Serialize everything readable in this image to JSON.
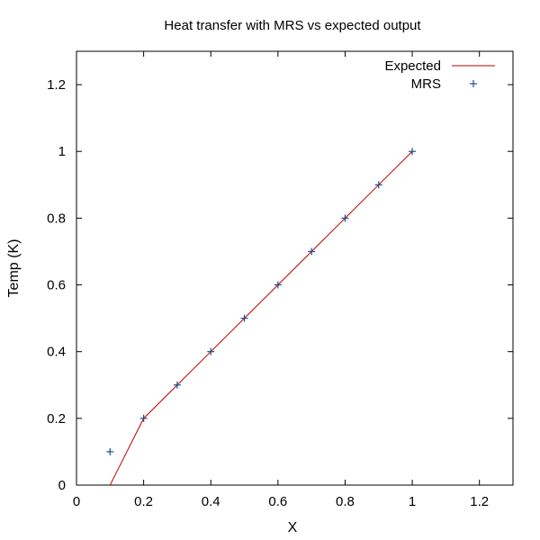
{
  "chart_data": {
    "type": "line",
    "title": "Heat transfer with MRS vs expected output",
    "xlabel": "X",
    "ylabel": "Temp (K)",
    "xlim": [
      0,
      1.3
    ],
    "ylim": [
      0,
      1.3
    ],
    "xticks": [
      0,
      0.2,
      0.4,
      0.6,
      0.8,
      1,
      1.2
    ],
    "yticks": [
      0,
      0.2,
      0.4,
      0.6,
      0.8,
      1,
      1.2
    ],
    "xtick_labels": [
      "0",
      "0.2",
      "0.4",
      "0.6",
      "0.8",
      "1",
      "1.2"
    ],
    "ytick_labels": [
      "0",
      "0.2",
      "0.4",
      "0.6",
      "0.8",
      "1",
      "1.2"
    ],
    "grid": false,
    "legend_position": "top-right",
    "series": [
      {
        "name": "Expected",
        "style": "line",
        "color": "#c00000",
        "x": [
          0.1,
          0.2,
          0.3,
          0.4,
          0.5,
          0.6,
          0.7,
          0.8,
          0.9,
          1.0
        ],
        "y": [
          0.0,
          0.2,
          0.3,
          0.4,
          0.5,
          0.6,
          0.7,
          0.8,
          0.9,
          1.0
        ]
      },
      {
        "name": "MRS",
        "style": "points",
        "marker": "plus",
        "color": "#1f4e8c",
        "x": [
          0.1,
          0.2,
          0.3,
          0.4,
          0.5,
          0.6,
          0.7,
          0.8,
          0.9,
          1.0
        ],
        "y": [
          0.1,
          0.2,
          0.3,
          0.4,
          0.5,
          0.6,
          0.7,
          0.8,
          0.9,
          1.0
        ]
      }
    ]
  }
}
